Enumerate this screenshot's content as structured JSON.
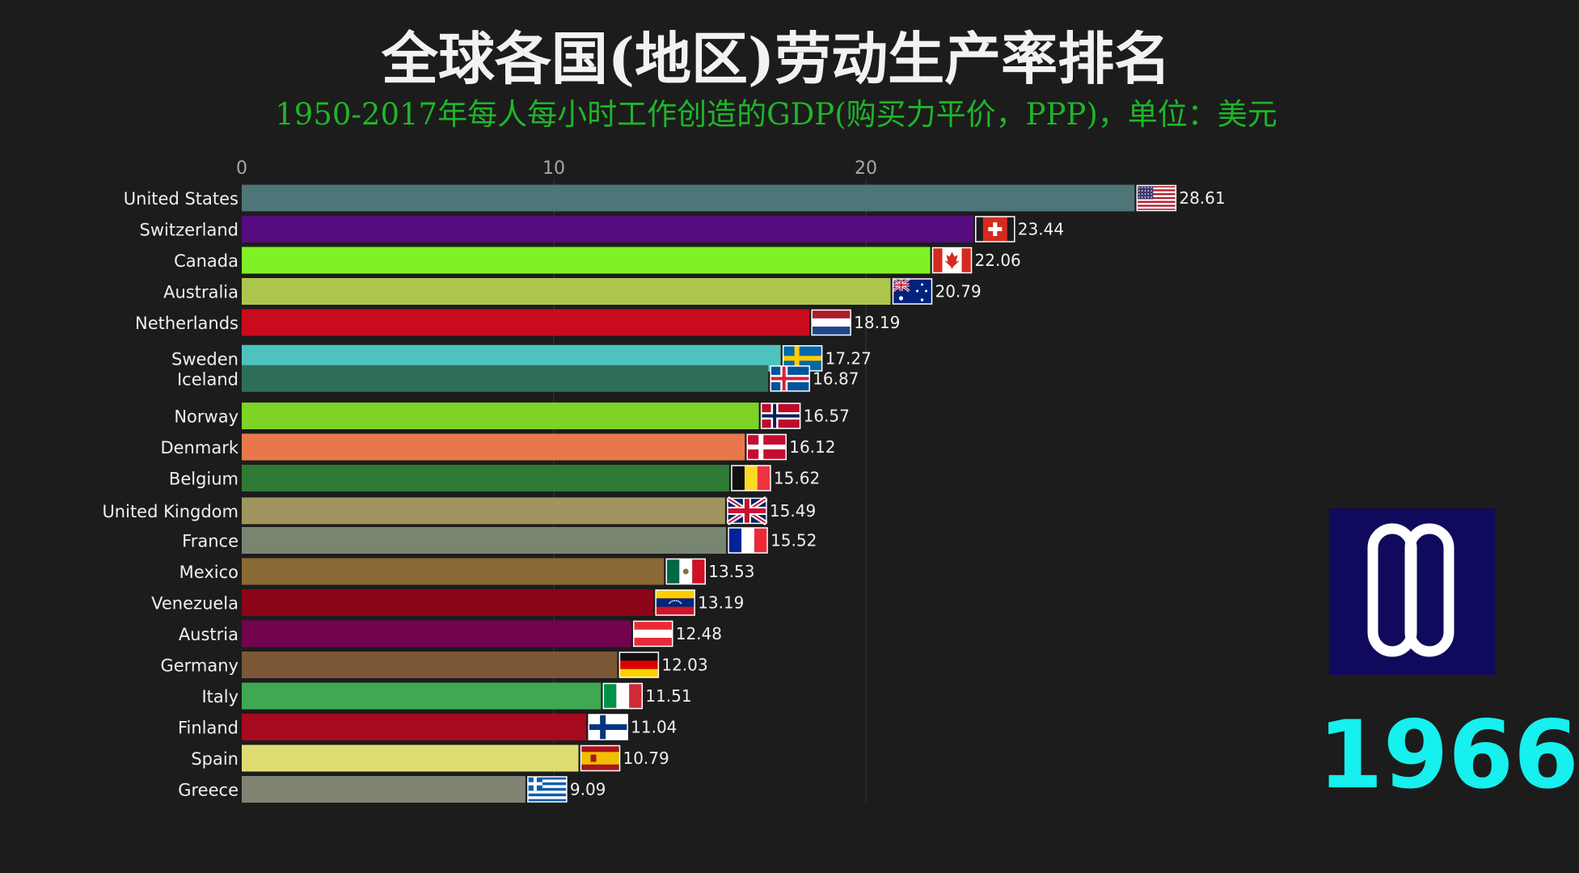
{
  "title": "全球各国(地区)劳动生产率排名",
  "subtitle": "1950-2017年每人每小时工作创造的GDP(购买力平价，PPP)，单位：美元",
  "year": "1966",
  "logo_icon": "double-loop-logo-icon",
  "chart_data": {
    "type": "bar",
    "orientation": "horizontal",
    "title": "全球各国(地区)劳动生产率排名",
    "subtitle": "1950-2017年每人每小时工作创造的GDP(购买力平价，PPP)，单位：美元",
    "x_ticks": [
      0,
      10,
      20
    ],
    "xlim": [
      0,
      30
    ],
    "grid": true,
    "categories": [
      "United States",
      "Switzerland",
      "Canada",
      "Australia",
      "Netherlands",
      "Sweden",
      "Iceland",
      "Norway",
      "Denmark",
      "Belgium",
      "United Kingdom",
      "France",
      "Mexico",
      "Venezuela",
      "Austria",
      "Germany",
      "Italy",
      "Finland",
      "Spain",
      "Greece"
    ],
    "values": [
      28.61,
      23.44,
      22.06,
      20.79,
      18.19,
      17.27,
      16.87,
      16.57,
      16.12,
      15.62,
      15.49,
      15.52,
      13.53,
      13.19,
      12.48,
      12.03,
      11.51,
      11.04,
      10.79,
      9.09
    ],
    "labels": [
      "28.61",
      "23.44",
      "22.06",
      "20.79",
      "18.19",
      "17.27",
      "16.87",
      "16.57",
      "16.12",
      "15.62",
      "15.49",
      "15.52",
      "13.53",
      "13.19",
      "12.48",
      "12.03",
      "11.51",
      "11.04",
      "10.79",
      "9.09"
    ],
    "rank_slots": [
      0,
      1,
      2,
      3,
      4,
      5.15,
      5.8,
      7,
      8,
      9,
      10.05,
      11,
      12,
      13,
      14,
      15,
      16,
      17,
      18,
      19
    ],
    "colors": [
      "#4e7577",
      "#560c7e",
      "#7ff227",
      "#aec54c",
      "#c90b1e",
      "#4ec3be",
      "#2e6e57",
      "#7dd326",
      "#e8784b",
      "#2f7a35",
      "#a0955e",
      "#788570",
      "#8b6934",
      "#8b0418",
      "#72044f",
      "#7b5737",
      "#3fa853",
      "#a50a1e",
      "#dedb72",
      "#7f8473"
    ],
    "flags": [
      "us-flag-icon",
      "ch-flag-icon",
      "ca-flag-icon",
      "au-flag-icon",
      "nl-flag-icon",
      "se-flag-icon",
      "is-flag-icon",
      "no-flag-icon",
      "dk-flag-icon",
      "be-flag-icon",
      "gb-flag-icon",
      "fr-flag-icon",
      "mx-flag-icon",
      "ve-flag-icon",
      "at-flag-icon",
      "de-flag-icon",
      "it-flag-icon",
      "fi-flag-icon",
      "es-flag-icon",
      "gr-flag-icon"
    ]
  }
}
